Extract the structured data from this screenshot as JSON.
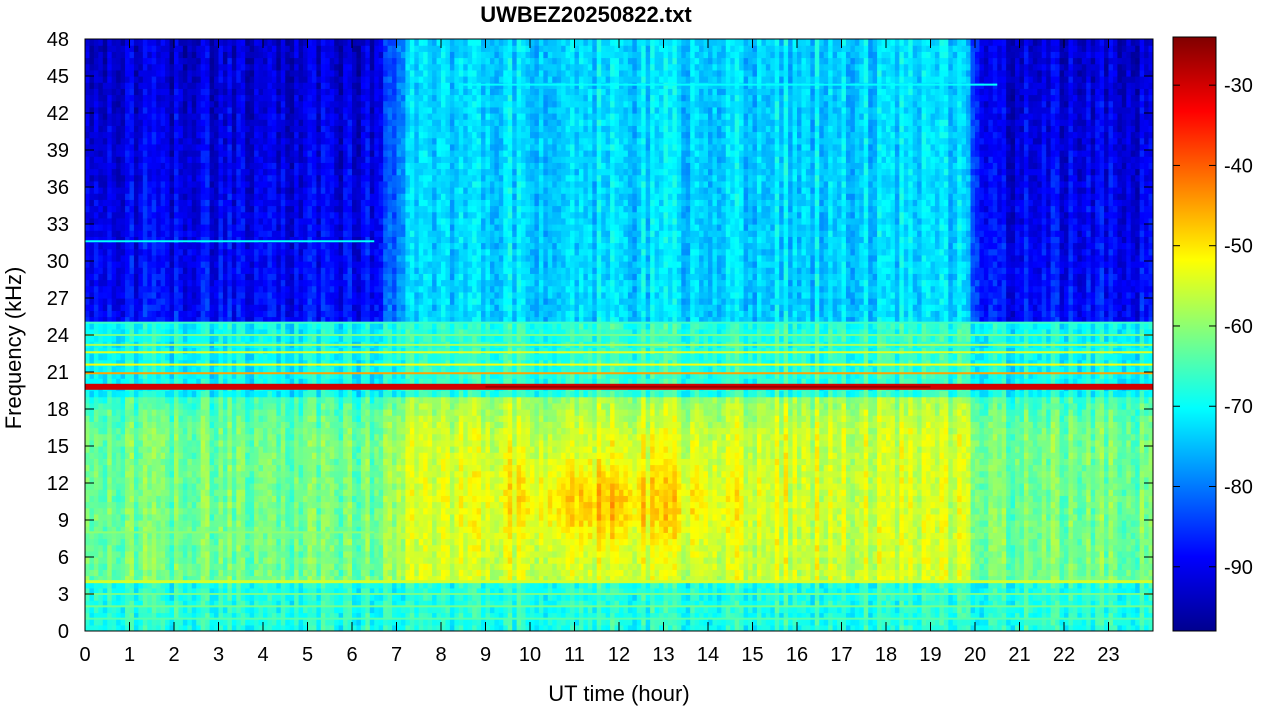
{
  "chart_data": {
    "type": "heatmap",
    "title": "UWBEZ20250822.txt",
    "xlabel": "UT time (hour)",
    "ylabel": "Frequency (kHz)",
    "xlim": [
      0,
      24
    ],
    "ylim": [
      0,
      48
    ],
    "x_ticks": [
      "0",
      "1",
      "2",
      "3",
      "4",
      "5",
      "6",
      "7",
      "8",
      "9",
      "10",
      "11",
      "12",
      "13",
      "14",
      "15",
      "16",
      "17",
      "18",
      "19",
      "20",
      "21",
      "22",
      "23"
    ],
    "y_ticks": [
      "0",
      "3",
      "6",
      "9",
      "12",
      "15",
      "18",
      "21",
      "24",
      "27",
      "30",
      "33",
      "36",
      "39",
      "42",
      "45",
      "48"
    ],
    "colorbar": {
      "colormap": "jet",
      "range": [
        -98,
        -24
      ],
      "ticks": [
        "-90",
        "-80",
        "-70",
        "-60",
        "-50",
        "-40",
        "-30"
      ]
    },
    "approx_levels_dB": {
      "background_0_to_4kHz": -68,
      "band_4_to_19kHz_daytime": -55,
      "band_4_to_19kHz_nighttime": -62,
      "peak_region_9_to_13kHz_10_to_13UT": -50,
      "strong_line_19_8kHz": -30,
      "lines_21_to_25kHz": -60,
      "upper_band_25_to_48kHz_night": -88,
      "upper_band_25_to_48kHz_day": -73
    }
  }
}
